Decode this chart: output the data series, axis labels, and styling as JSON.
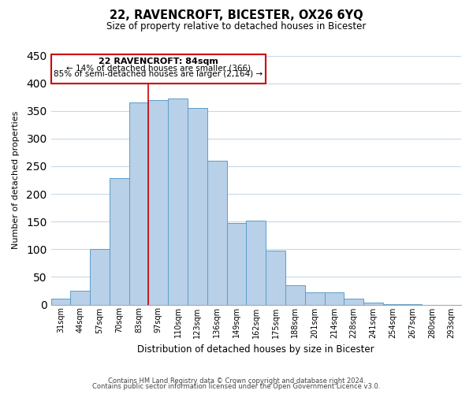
{
  "title": "22, RAVENCROFT, BICESTER, OX26 6YQ",
  "subtitle": "Size of property relative to detached houses in Bicester",
  "xlabel": "Distribution of detached houses by size in Bicester",
  "ylabel": "Number of detached properties",
  "bar_labels": [
    "31sqm",
    "44sqm",
    "57sqm",
    "70sqm",
    "83sqm",
    "97sqm",
    "110sqm",
    "123sqm",
    "136sqm",
    "149sqm",
    "162sqm",
    "175sqm",
    "188sqm",
    "201sqm",
    "214sqm",
    "228sqm",
    "241sqm",
    "254sqm",
    "267sqm",
    "280sqm",
    "293sqm"
  ],
  "bar_values": [
    10,
    25,
    100,
    228,
    365,
    370,
    373,
    355,
    260,
    148,
    152,
    97,
    35,
    22,
    22,
    11,
    3,
    1,
    1,
    0,
    0
  ],
  "bar_color": "#b8d0e8",
  "bar_edge_color": "#5b9ec9",
  "highlight_index": 4,
  "ylim": [
    0,
    450
  ],
  "yticks": [
    0,
    50,
    100,
    150,
    200,
    250,
    300,
    350,
    400,
    450
  ],
  "annotation_title": "22 RAVENCROFT: 84sqm",
  "annotation_line1": "← 14% of detached houses are smaller (366)",
  "annotation_line2": "85% of semi-detached houses are larger (2,164) →",
  "annotation_box_color": "#ffffff",
  "annotation_box_edge": "#cc0000",
  "red_line_color": "#cc0000",
  "footer_line1": "Contains HM Land Registry data © Crown copyright and database right 2024.",
  "footer_line2": "Contains public sector information licensed under the Open Government Licence v3.0.",
  "background_color": "#ffffff",
  "grid_color": "#c8d8e8"
}
